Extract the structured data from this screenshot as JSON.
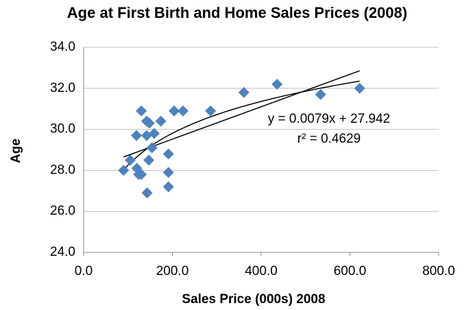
{
  "chart_data": {
    "type": "scatter",
    "title": "Age at First Birth and Home Sales Prices (2008)",
    "x_label": "Sales Price (000s) 2008",
    "y_label": "Age",
    "annotations": [
      "y = 0.0079x + 27.942",
      "r² = 0.4629"
    ],
    "trendline": {
      "slope": 0.0079,
      "intercept": 27.942
    },
    "color": "#4f81bd",
    "grid": true,
    "x": [
      90,
      105,
      119,
      120,
      124,
      130,
      130,
      142,
      143,
      142,
      148,
      147,
      154,
      159,
      174,
      191,
      191,
      191,
      204,
      224,
      286,
      361,
      436,
      534,
      622
    ],
    "values": [
      28.0,
      28.5,
      29.7,
      28.1,
      27.8,
      27.8,
      30.9,
      30.4,
      26.9,
      29.7,
      30.3,
      28.5,
      29.1,
      29.8,
      30.4,
      28.8,
      27.9,
      27.2,
      30.9,
      30.9,
      30.9,
      31.8,
      32.2,
      31.7,
      32.0
    ],
    "xlim": [
      0,
      800
    ],
    "xticks": [
      {
        "value": 0,
        "label": "0.0"
      },
      {
        "value": 200,
        "label": "200.0"
      },
      {
        "value": 400,
        "label": "400.0"
      },
      {
        "value": 600,
        "label": "600.0"
      },
      {
        "value": 800,
        "label": "800.0"
      }
    ],
    "ylim": [
      24,
      34
    ],
    "yticks": [
      {
        "value": 24,
        "label": "24.0"
      },
      {
        "value": 26,
        "label": "26.0"
      },
      {
        "value": 28,
        "label": "28.0"
      },
      {
        "value": 30,
        "label": "30.0"
      },
      {
        "value": 32,
        "label": "32.0"
      },
      {
        "value": 34,
        "label": "34.0"
      }
    ]
  }
}
